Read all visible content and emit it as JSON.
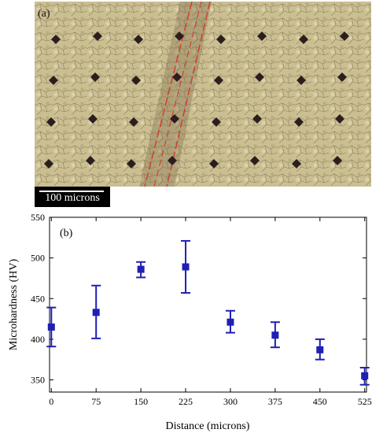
{
  "panel_a": {
    "label": "(a)",
    "scale_bar": "100 microns",
    "colors": {
      "background": "#cbbf92",
      "indent": "#2a1e1e",
      "band": "#d0402a"
    }
  },
  "chart_data": {
    "type": "scatter",
    "panel_label": "(b)",
    "xlabel": "Distance (microns)",
    "ylabel": "Microhardness (HV)",
    "xlim": [
      -3,
      528
    ],
    "ylim": [
      335,
      550
    ],
    "xticks": [
      0,
      75,
      150,
      225,
      300,
      375,
      450,
      525
    ],
    "yticks": [
      350,
      400,
      450,
      500,
      550
    ],
    "grid": false,
    "legend": "none",
    "marker_color": "#1f1fb4",
    "series": [
      {
        "x": [
          0,
          75,
          150,
          225,
          300,
          375,
          450,
          525
        ],
        "y": [
          415,
          433,
          486,
          489,
          421,
          405,
          387,
          355
        ],
        "err_low": [
          391,
          401,
          476,
          457,
          408,
          390,
          375,
          344
        ],
        "err_high": [
          439,
          466,
          495,
          521,
          435,
          421,
          400,
          365
        ]
      }
    ]
  }
}
